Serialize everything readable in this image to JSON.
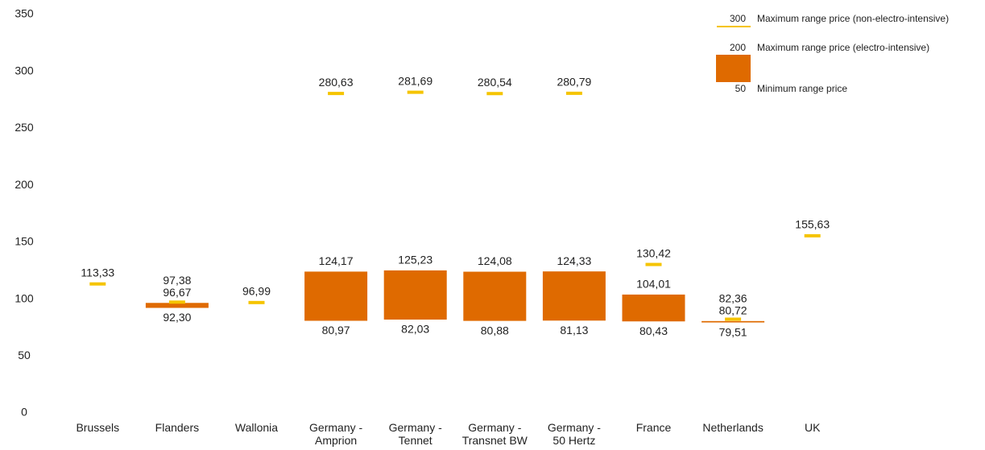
{
  "chart_data": {
    "type": "floating-range",
    "categories": [
      "Brussels",
      "Flanders",
      "Wallonia",
      "Germany -\nAmprion",
      "Germany -\nTennet",
      "Germany -\nTransnet BW",
      "Germany -\n50 Hertz",
      "France",
      "Netherlands",
      "UK"
    ],
    "series": [
      {
        "name": "Maximum range price (non-electro-intensive)",
        "color": "#f5c400",
        "values": [
          113.33,
          97.38,
          96.99,
          280.63,
          281.69,
          280.54,
          280.79,
          130.42,
          82.36,
          155.63
        ],
        "value_labels": [
          "113,33",
          "97,38",
          "96,99",
          "280,63",
          "281,69",
          "280,54",
          "280,79",
          "130,42",
          "82,36",
          "155,63"
        ]
      },
      {
        "name": "Maximum range price (electro-intensive)",
        "color": "#df6a00",
        "values": [
          null,
          96.67,
          null,
          124.17,
          125.23,
          124.08,
          124.33,
          104.01,
          80.72,
          null
        ],
        "value_labels": [
          null,
          "96,67",
          null,
          "124,17",
          "125,23",
          "124,08",
          "124,33",
          "104,01",
          "80,72",
          null
        ]
      },
      {
        "name": "Minimum range price",
        "color": "#df6a00",
        "values": [
          null,
          92.3,
          null,
          80.97,
          82.03,
          80.88,
          81.13,
          80.43,
          79.51,
          null
        ],
        "value_labels": [
          null,
          "92,30",
          null,
          "80,97",
          "82,03",
          "80,88",
          "81,13",
          "80,43",
          "79,51",
          null
        ]
      }
    ],
    "legend_samples": [
      "300",
      "200",
      "50"
    ],
    "ylim": [
      0,
      350
    ],
    "yticks": [
      0,
      50,
      100,
      150,
      200,
      250,
      300,
      350
    ],
    "grid": false
  }
}
